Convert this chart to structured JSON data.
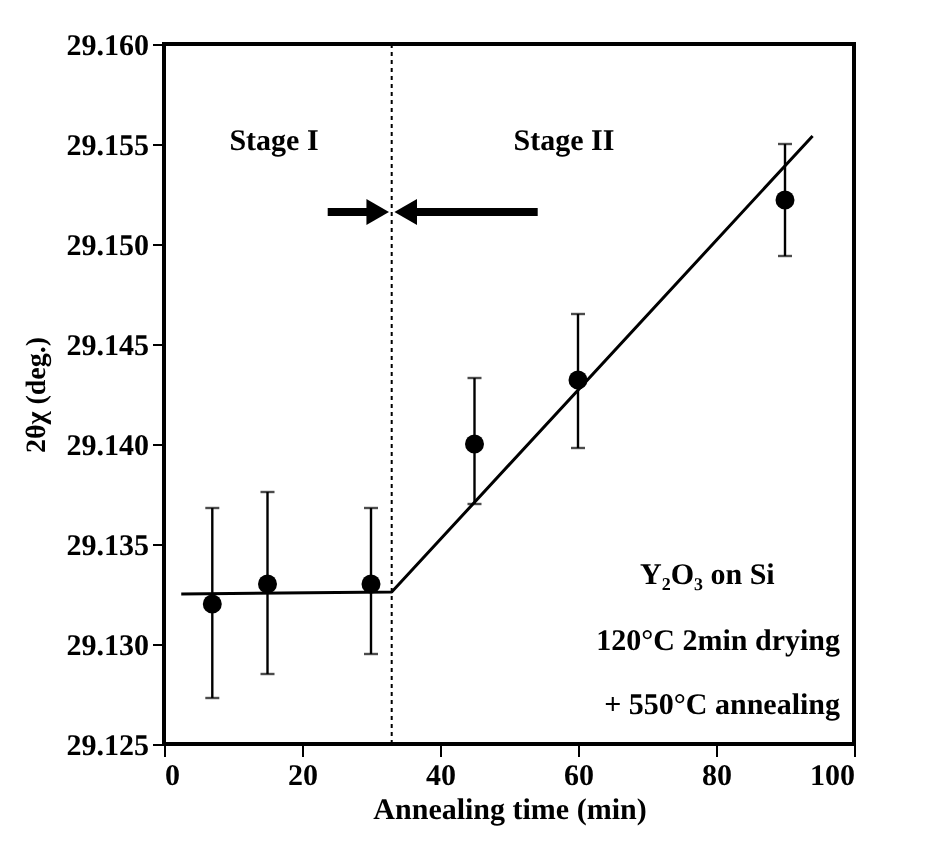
{
  "chart_data": {
    "type": "scatter",
    "xlabel": "Annealing time (min)",
    "ylabel": "2θχ (deg.)",
    "xlim": [
      0,
      100
    ],
    "xticks": [
      0,
      20,
      40,
      60,
      80,
      100
    ],
    "ylim": [
      29.125,
      29.16
    ],
    "yticks": [
      29.125,
      {
        "value": 29.13,
        "label": "29.130"
      },
      29.135,
      {
        "value": 29.14,
        "label": "29.140"
      },
      29.145,
      {
        "value": 29.15,
        "label": "29.150"
      },
      29.155,
      {
        "value": 29.16,
        "label": "29.160"
      }
    ],
    "grid": false,
    "series": [
      {
        "color": "#000000",
        "marker": "circle",
        "x": [
          7,
          15,
          30,
          45,
          60,
          90
        ],
        "values": [
          29.132,
          29.133,
          29.133,
          29.14,
          29.1432,
          29.1522
        ],
        "errors": [
          [
            29.1273,
            29.1368
          ],
          [
            29.1285,
            29.1376
          ],
          [
            29.1295,
            29.1368
          ],
          [
            29.137,
            29.1433
          ],
          [
            29.1398,
            29.1465
          ],
          [
            29.1494,
            29.155
          ]
        ]
      },
      {
        "type": "line",
        "color": "#000000",
        "line_style": "solid",
        "marker": "none",
        "x": [
          2.5,
          33,
          94
        ],
        "values": [
          29.1325,
          29.1326,
          29.1554
        ]
      }
    ],
    "ref_lines": [
      {
        "axis": "x",
        "value": 33,
        "line_style": "dotted",
        "color": "#000000"
      }
    ],
    "annotations": [
      "Stage I",
      "Stage II",
      "Y₂O₃ on Si",
      "120°C 2min drying",
      "+ 550°C annealing"
    ]
  }
}
